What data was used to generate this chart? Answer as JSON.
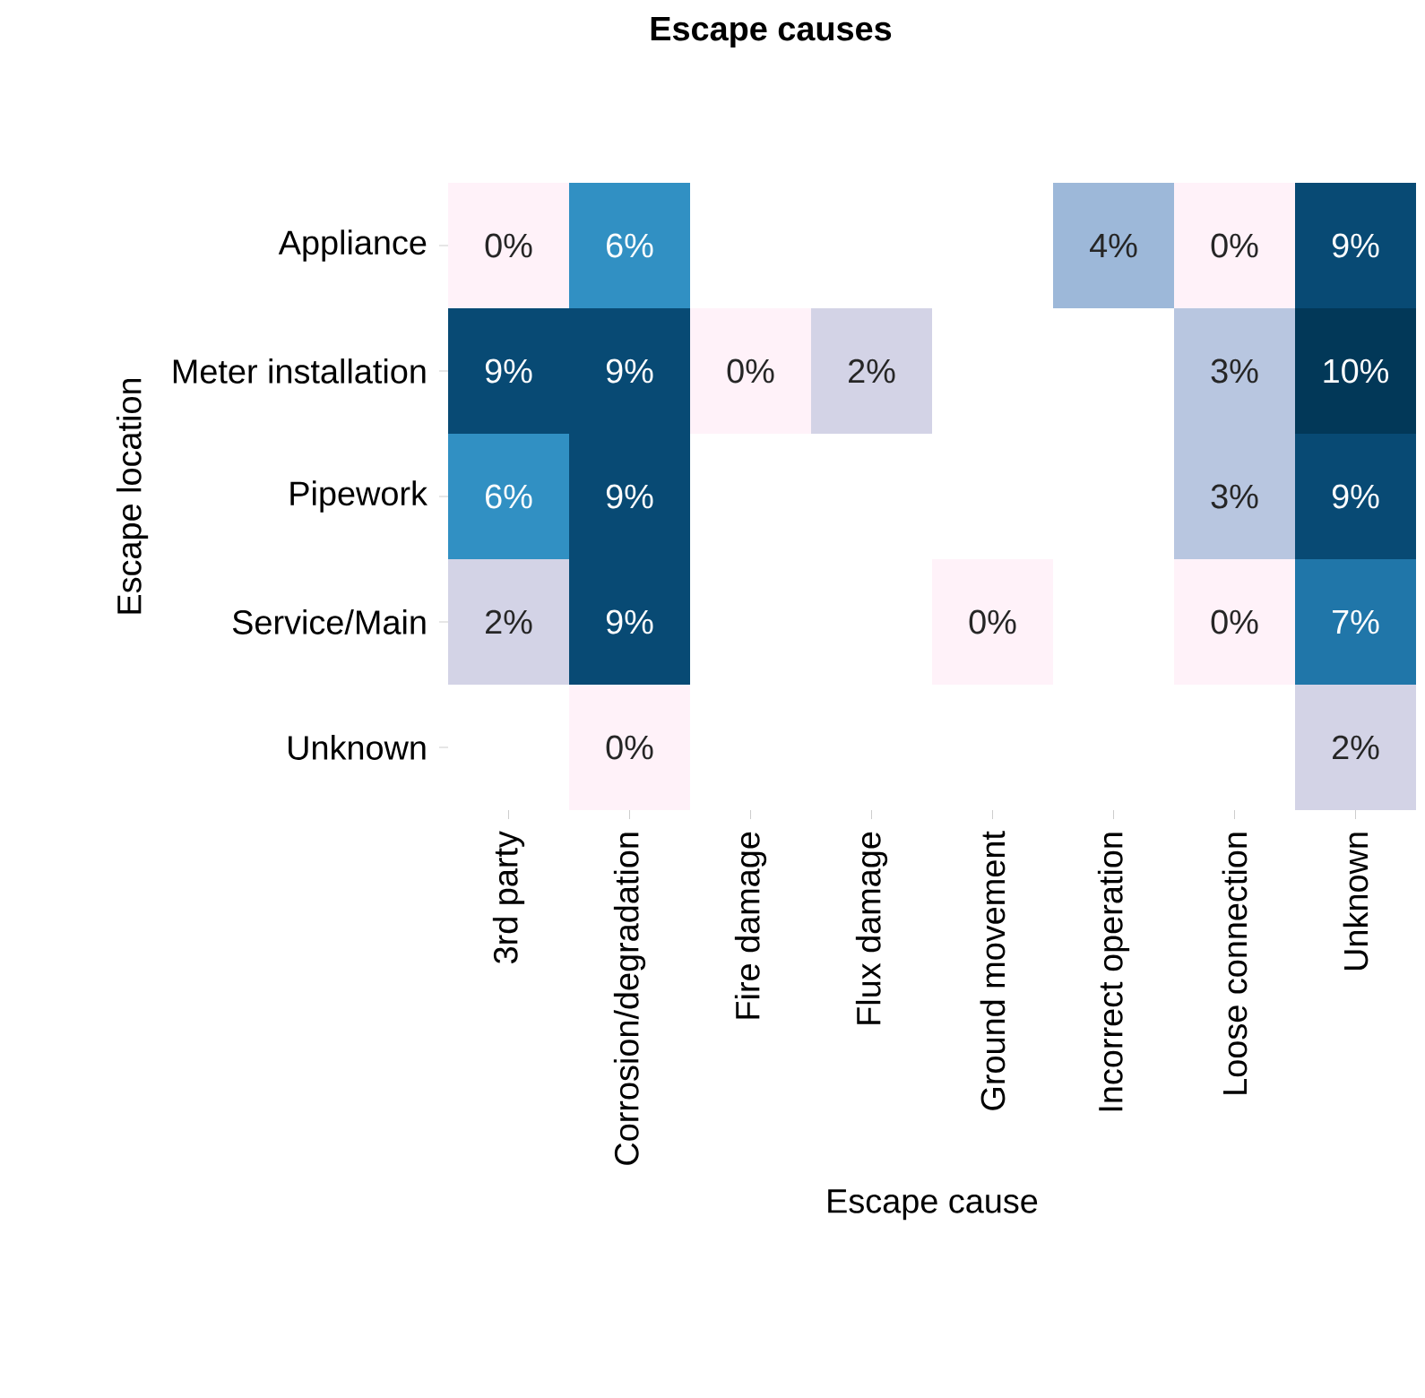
{
  "chart_data": {
    "type": "heatmap",
    "title": "Escape causes",
    "xlabel": "Escape cause",
    "ylabel": "Escape location",
    "categories": [
      "3rd party",
      "Corrosion/degradation",
      "Fire damage",
      "Flux damage",
      "Ground movement",
      "Incorrect operation",
      "Loose connection",
      "Unknown"
    ],
    "y_categories": [
      "Appliance",
      "Meter installation",
      "Pipework",
      "Service/Main",
      "Unknown"
    ],
    "cells": [
      [
        0,
        6,
        null,
        null,
        null,
        4,
        0,
        9
      ],
      [
        9,
        9,
        0,
        2,
        null,
        null,
        3,
        10
      ],
      [
        6,
        9,
        null,
        null,
        null,
        null,
        3,
        9
      ],
      [
        2,
        9,
        null,
        null,
        0,
        null,
        0,
        7
      ],
      [
        null,
        0,
        null,
        null,
        null,
        null,
        null,
        2
      ]
    ],
    "cell_labels": [
      [
        "0%",
        "6%",
        null,
        null,
        null,
        "4%",
        "0%",
        "9%"
      ],
      [
        "9%",
        "9%",
        "0%",
        "2%",
        null,
        null,
        "3%",
        "10%"
      ],
      [
        "6%",
        "9%",
        null,
        null,
        null,
        null,
        "3%",
        "9%"
      ],
      [
        "2%",
        "9%",
        null,
        null,
        "0%",
        null,
        "0%",
        "7%"
      ],
      [
        null,
        "0%",
        null,
        null,
        null,
        null,
        null,
        "2%"
      ]
    ]
  }
}
